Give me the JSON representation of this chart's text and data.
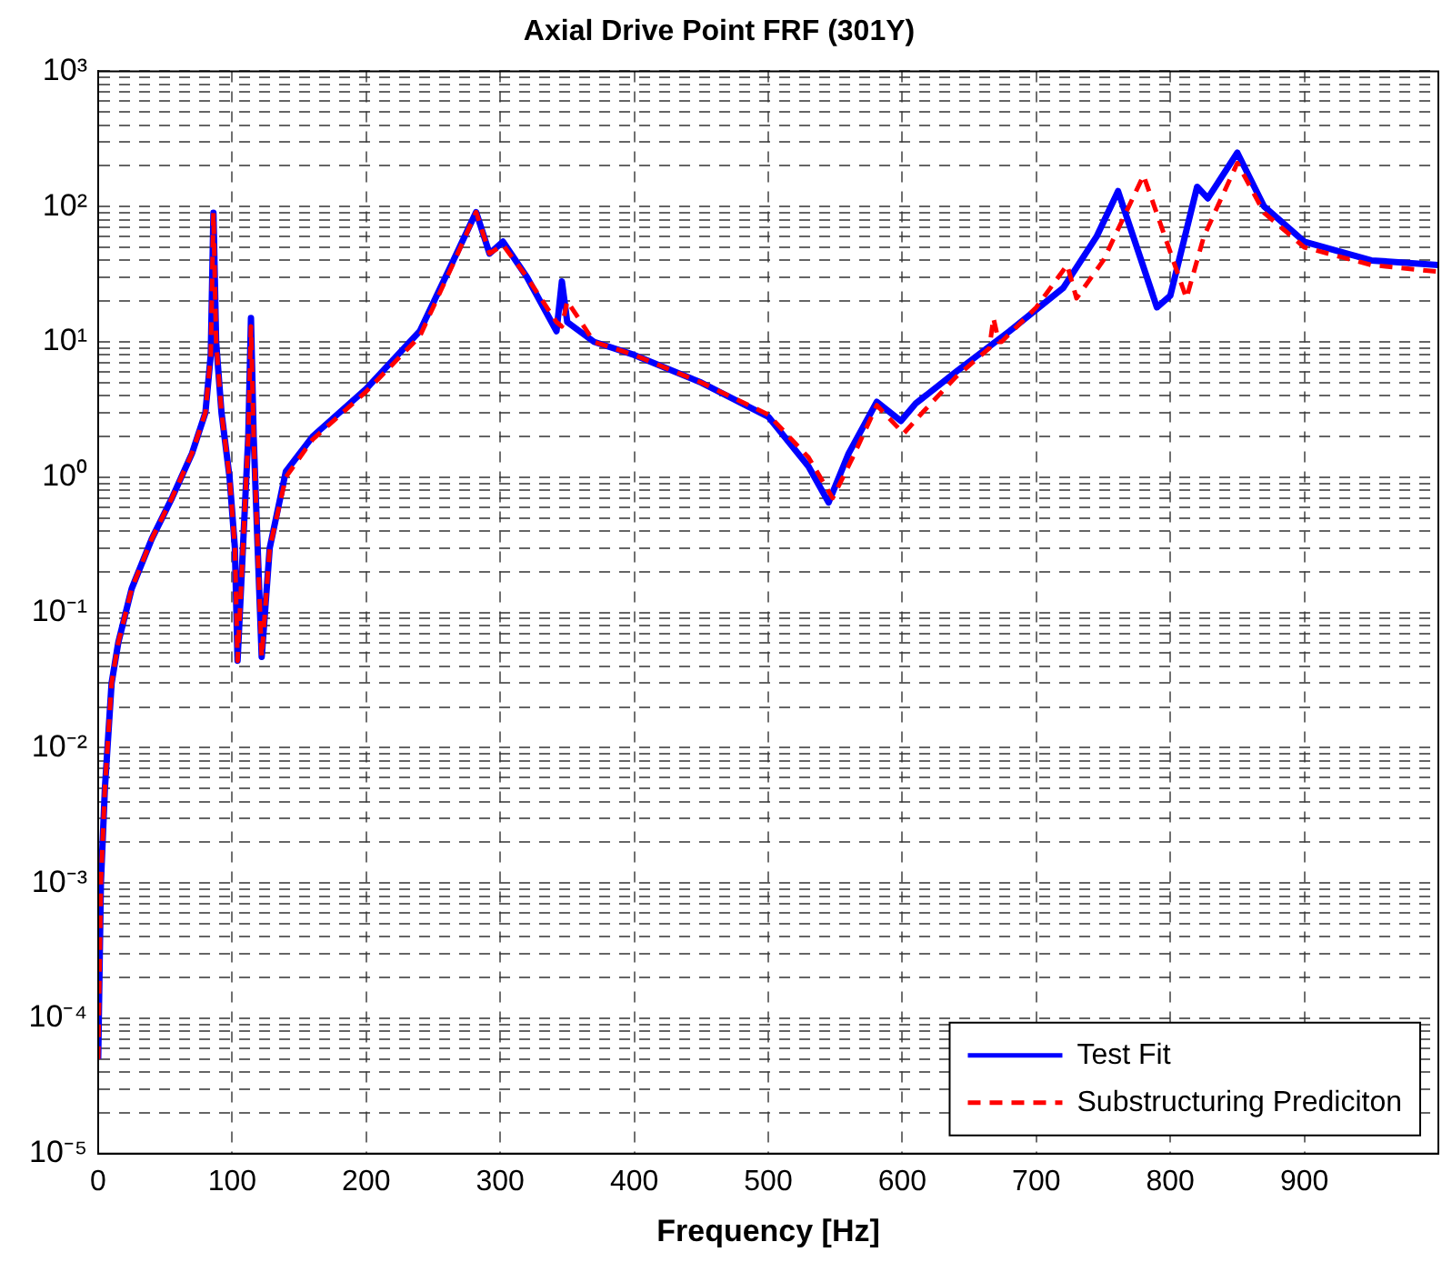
{
  "chart_data": {
    "type": "line",
    "title": "Axial Drive Point FRF (301Y)",
    "xlabel": "Frequency [Hz]",
    "log": "y",
    "grid": true,
    "legend": "bottom right",
    "xlim": [
      0,
      1000
    ],
    "xticks": [
      0,
      100,
      200,
      300,
      400,
      500,
      600,
      700,
      800,
      900
    ],
    "ylim": [
      1e-05,
      1000
    ],
    "yticks": [
      {
        "value": 1e-05,
        "label": "10⁻⁵"
      },
      {
        "value": 2e-05,
        "label": null
      },
      {
        "value": 3e-05,
        "label": null
      },
      {
        "value": 4e-05,
        "label": null
      },
      {
        "value": 5e-05,
        "label": null
      },
      {
        "value": 6e-05,
        "label": null
      },
      {
        "value": 7e-05,
        "label": null
      },
      {
        "value": 8e-05,
        "label": null
      },
      {
        "value": 9e-05,
        "label": null
      },
      {
        "value": 0.0001,
        "label": "10⁻⁴"
      },
      {
        "value": 0.0002,
        "label": null
      },
      {
        "value": 0.0003,
        "label": null
      },
      {
        "value": 0.0004,
        "label": null
      },
      {
        "value": 0.0005,
        "label": null
      },
      {
        "value": 0.0006,
        "label": null
      },
      {
        "value": 0.0007,
        "label": null
      },
      {
        "value": 0.0008,
        "label": null
      },
      {
        "value": 0.0009,
        "label": null
      },
      {
        "value": 0.001,
        "label": "10⁻³"
      },
      {
        "value": 0.002,
        "label": null
      },
      {
        "value": 0.003,
        "label": null
      },
      {
        "value": 0.004,
        "label": null
      },
      {
        "value": 0.005,
        "label": null
      },
      {
        "value": 0.006,
        "label": null
      },
      {
        "value": 0.007,
        "label": null
      },
      {
        "value": 0.008,
        "label": null
      },
      {
        "value": 0.009,
        "label": null
      },
      {
        "value": 0.01,
        "label": "10⁻²"
      },
      {
        "value": 0.02,
        "label": null
      },
      {
        "value": 0.03,
        "label": null
      },
      {
        "value": 0.04,
        "label": null
      },
      {
        "value": 0.05,
        "label": null
      },
      {
        "value": 0.06,
        "label": null
      },
      {
        "value": 0.07,
        "label": null
      },
      {
        "value": 0.08,
        "label": null
      },
      {
        "value": 0.09,
        "label": null
      },
      {
        "value": 0.1,
        "label": "10⁻¹"
      },
      {
        "value": 0.2,
        "label": null
      },
      {
        "value": 0.3,
        "label": null
      },
      {
        "value": 0.4,
        "label": null
      },
      {
        "value": 0.5,
        "label": null
      },
      {
        "value": 0.6,
        "label": null
      },
      {
        "value": 0.7,
        "label": null
      },
      {
        "value": 0.8,
        "label": null
      },
      {
        "value": 0.9,
        "label": null
      },
      {
        "value": 1,
        "label": "10⁰"
      },
      {
        "value": 2,
        "label": null
      },
      {
        "value": 3,
        "label": null
      },
      {
        "value": 4,
        "label": null
      },
      {
        "value": 5,
        "label": null
      },
      {
        "value": 6,
        "label": null
      },
      {
        "value": 7,
        "label": null
      },
      {
        "value": 8,
        "label": null
      },
      {
        "value": 9,
        "label": null
      },
      {
        "value": 10,
        "label": "10¹"
      },
      {
        "value": 20,
        "label": null
      },
      {
        "value": 30,
        "label": null
      },
      {
        "value": 40,
        "label": null
      },
      {
        "value": 50,
        "label": null
      },
      {
        "value": 60,
        "label": null
      },
      {
        "value": 70,
        "label": null
      },
      {
        "value": 80,
        "label": null
      },
      {
        "value": 90,
        "label": null
      },
      {
        "value": 100,
        "label": "10²"
      },
      {
        "value": 200,
        "label": null
      },
      {
        "value": 300,
        "label": null
      },
      {
        "value": 400,
        "label": null
      },
      {
        "value": 500,
        "label": null
      },
      {
        "value": 600,
        "label": null
      },
      {
        "value": 700,
        "label": null
      },
      {
        "value": 800,
        "label": null
      },
      {
        "value": 900,
        "label": null
      },
      {
        "value": 1000,
        "label": "10³"
      }
    ],
    "series": [
      {
        "name": "Test Fit",
        "color": "#0000ff",
        "line_style": "solid",
        "x": [
          0,
          2,
          5,
          10,
          15,
          25,
          40,
          55,
          70,
          80,
          84,
          86,
          88,
          92,
          98,
          102,
          104,
          108,
          112,
          114,
          116,
          119,
          122,
          128,
          140,
          160,
          200,
          240,
          265,
          282,
          292,
          302,
          320,
          342,
          346,
          350,
          370,
          400,
          450,
          500,
          530,
          545,
          560,
          581,
          599,
          610,
          640,
          680,
          720,
          745,
          761,
          790,
          800,
          820,
          828,
          850,
          870,
          900,
          950,
          1000
        ],
        "values": [
          5e-05,
          0.001,
          0.005,
          0.03,
          0.06,
          0.15,
          0.35,
          0.7,
          1.5,
          3,
          8,
          90,
          10,
          3,
          1,
          0.3,
          0.044,
          0.3,
          2,
          15,
          2,
          0.3,
          0.047,
          0.3,
          1.1,
          2,
          4.5,
          12,
          40,
          91,
          45,
          55,
          30,
          12,
          28,
          14,
          10,
          8,
          5,
          2.8,
          1.2,
          0.65,
          1.5,
          3.6,
          2.6,
          3.5,
          6,
          12,
          25,
          60,
          130,
          18,
          22,
          140,
          115,
          250,
          100,
          55,
          40,
          37
        ]
      },
      {
        "name": "Substructuring Prediciton",
        "color": "#ff0000",
        "line_style": "dashed",
        "x": [
          0,
          2,
          5,
          10,
          15,
          25,
          40,
          55,
          70,
          80,
          84,
          86,
          88,
          92,
          98,
          102,
          104,
          108,
          112,
          114,
          116,
          119,
          122,
          128,
          140,
          160,
          200,
          240,
          265,
          282,
          292,
          302,
          320,
          342,
          346,
          350,
          370,
          400,
          450,
          500,
          530,
          548,
          563,
          581,
          601,
          615,
          640,
          665,
          668,
          672,
          674,
          700,
          723,
          730,
          750,
          780,
          812,
          825,
          850,
          870,
          900,
          950,
          1000
        ],
        "values": [
          5e-05,
          0.001,
          0.005,
          0.03,
          0.06,
          0.15,
          0.35,
          0.7,
          1.5,
          3,
          8,
          90,
          10,
          3,
          1,
          0.3,
          0.044,
          0.3,
          2,
          13,
          2,
          0.3,
          0.047,
          0.3,
          1,
          1.9,
          4.3,
          11,
          38,
          91,
          45,
          52,
          30,
          14,
          13,
          20,
          10,
          8,
          5,
          2.9,
          1.4,
          0.7,
          1.4,
          3.4,
          2.1,
          3,
          5.5,
          9,
          15,
          10,
          10,
          18,
          37,
          21,
          40,
          170,
          21,
          60,
          210,
          90,
          50,
          37,
          33
        ]
      }
    ]
  }
}
